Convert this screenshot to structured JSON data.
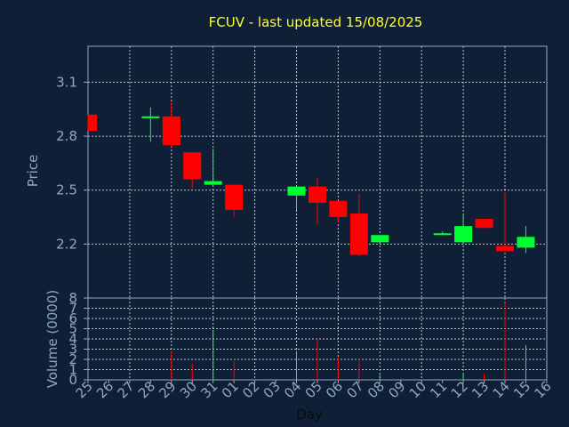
{
  "chart_data": {
    "type": "candlestick",
    "title": "FCUV - last updated 15/08/2025",
    "ylabel": "Price",
    "volume_label": "Volume (0000)",
    "xlabel": "Day",
    "price_ticks": [
      "3.1",
      "2.8",
      "2.5",
      "2.2"
    ],
    "volume_ticks": [
      "0",
      "1",
      "2",
      "3",
      "4",
      "5",
      "6",
      "7",
      "8"
    ],
    "price_ylim": [
      1.9,
      3.3
    ],
    "volume_ylim": [
      0,
      8
    ],
    "days": [
      "25",
      "26",
      "27",
      "28",
      "29",
      "30",
      "31",
      "01",
      "02",
      "03",
      "04",
      "05",
      "06",
      "07",
      "08",
      "09",
      "10",
      "11",
      "12",
      "13",
      "14",
      "15",
      "16"
    ],
    "candles": [
      {
        "day": "25",
        "open": 2.92,
        "high": 2.92,
        "low": 2.83,
        "close": 2.83,
        "volume": 0.0
      },
      {
        "day": "28",
        "open": 2.9,
        "high": 2.96,
        "low": 2.77,
        "close": 2.91,
        "volume": 0.0
      },
      {
        "day": "29",
        "open": 2.91,
        "high": 2.99,
        "low": 2.74,
        "close": 2.75,
        "volume": 2.8
      },
      {
        "day": "30",
        "open": 2.71,
        "high": 2.71,
        "low": 2.51,
        "close": 2.56,
        "volume": 1.6
      },
      {
        "day": "31",
        "open": 2.53,
        "high": 2.73,
        "low": 2.53,
        "close": 2.55,
        "volume": 4.8
      },
      {
        "day": "01",
        "open": 2.53,
        "high": 2.53,
        "low": 2.35,
        "close": 2.39,
        "volume": 1.8
      },
      {
        "day": "04",
        "open": 2.47,
        "high": 2.52,
        "low": 2.39,
        "close": 2.52,
        "volume": 2.8
      },
      {
        "day": "05",
        "open": 2.52,
        "high": 2.57,
        "low": 2.31,
        "close": 2.43,
        "volume": 4.0
      },
      {
        "day": "06",
        "open": 2.44,
        "high": 2.44,
        "low": 2.32,
        "close": 2.35,
        "volume": 2.2
      },
      {
        "day": "07",
        "open": 2.37,
        "high": 2.48,
        "low": 2.13,
        "close": 2.14,
        "volume": 2.0
      },
      {
        "day": "08",
        "open": 2.21,
        "high": 2.25,
        "low": 2.21,
        "close": 2.25,
        "volume": 0.5
      },
      {
        "day": "11",
        "open": 2.25,
        "high": 2.27,
        "low": 2.25,
        "close": 2.26,
        "volume": 0.0
      },
      {
        "day": "12",
        "open": 2.21,
        "high": 2.36,
        "low": 2.21,
        "close": 2.3,
        "volume": 0.7
      },
      {
        "day": "13",
        "open": 2.34,
        "high": 2.34,
        "low": 2.29,
        "close": 2.29,
        "volume": 0.6
      },
      {
        "day": "14",
        "open": 2.19,
        "high": 2.49,
        "low": 2.15,
        "close": 2.16,
        "volume": 7.6
      },
      {
        "day": "15",
        "open": 2.18,
        "high": 2.3,
        "low": 2.15,
        "close": 2.24,
        "volume": 3.4
      }
    ],
    "colors": {
      "background": "#0f2036",
      "title": "#ffff33",
      "text": "#8fa8c4",
      "up": "#00ff33",
      "down": "#ff0000",
      "grid": "#d8e0ea"
    }
  }
}
